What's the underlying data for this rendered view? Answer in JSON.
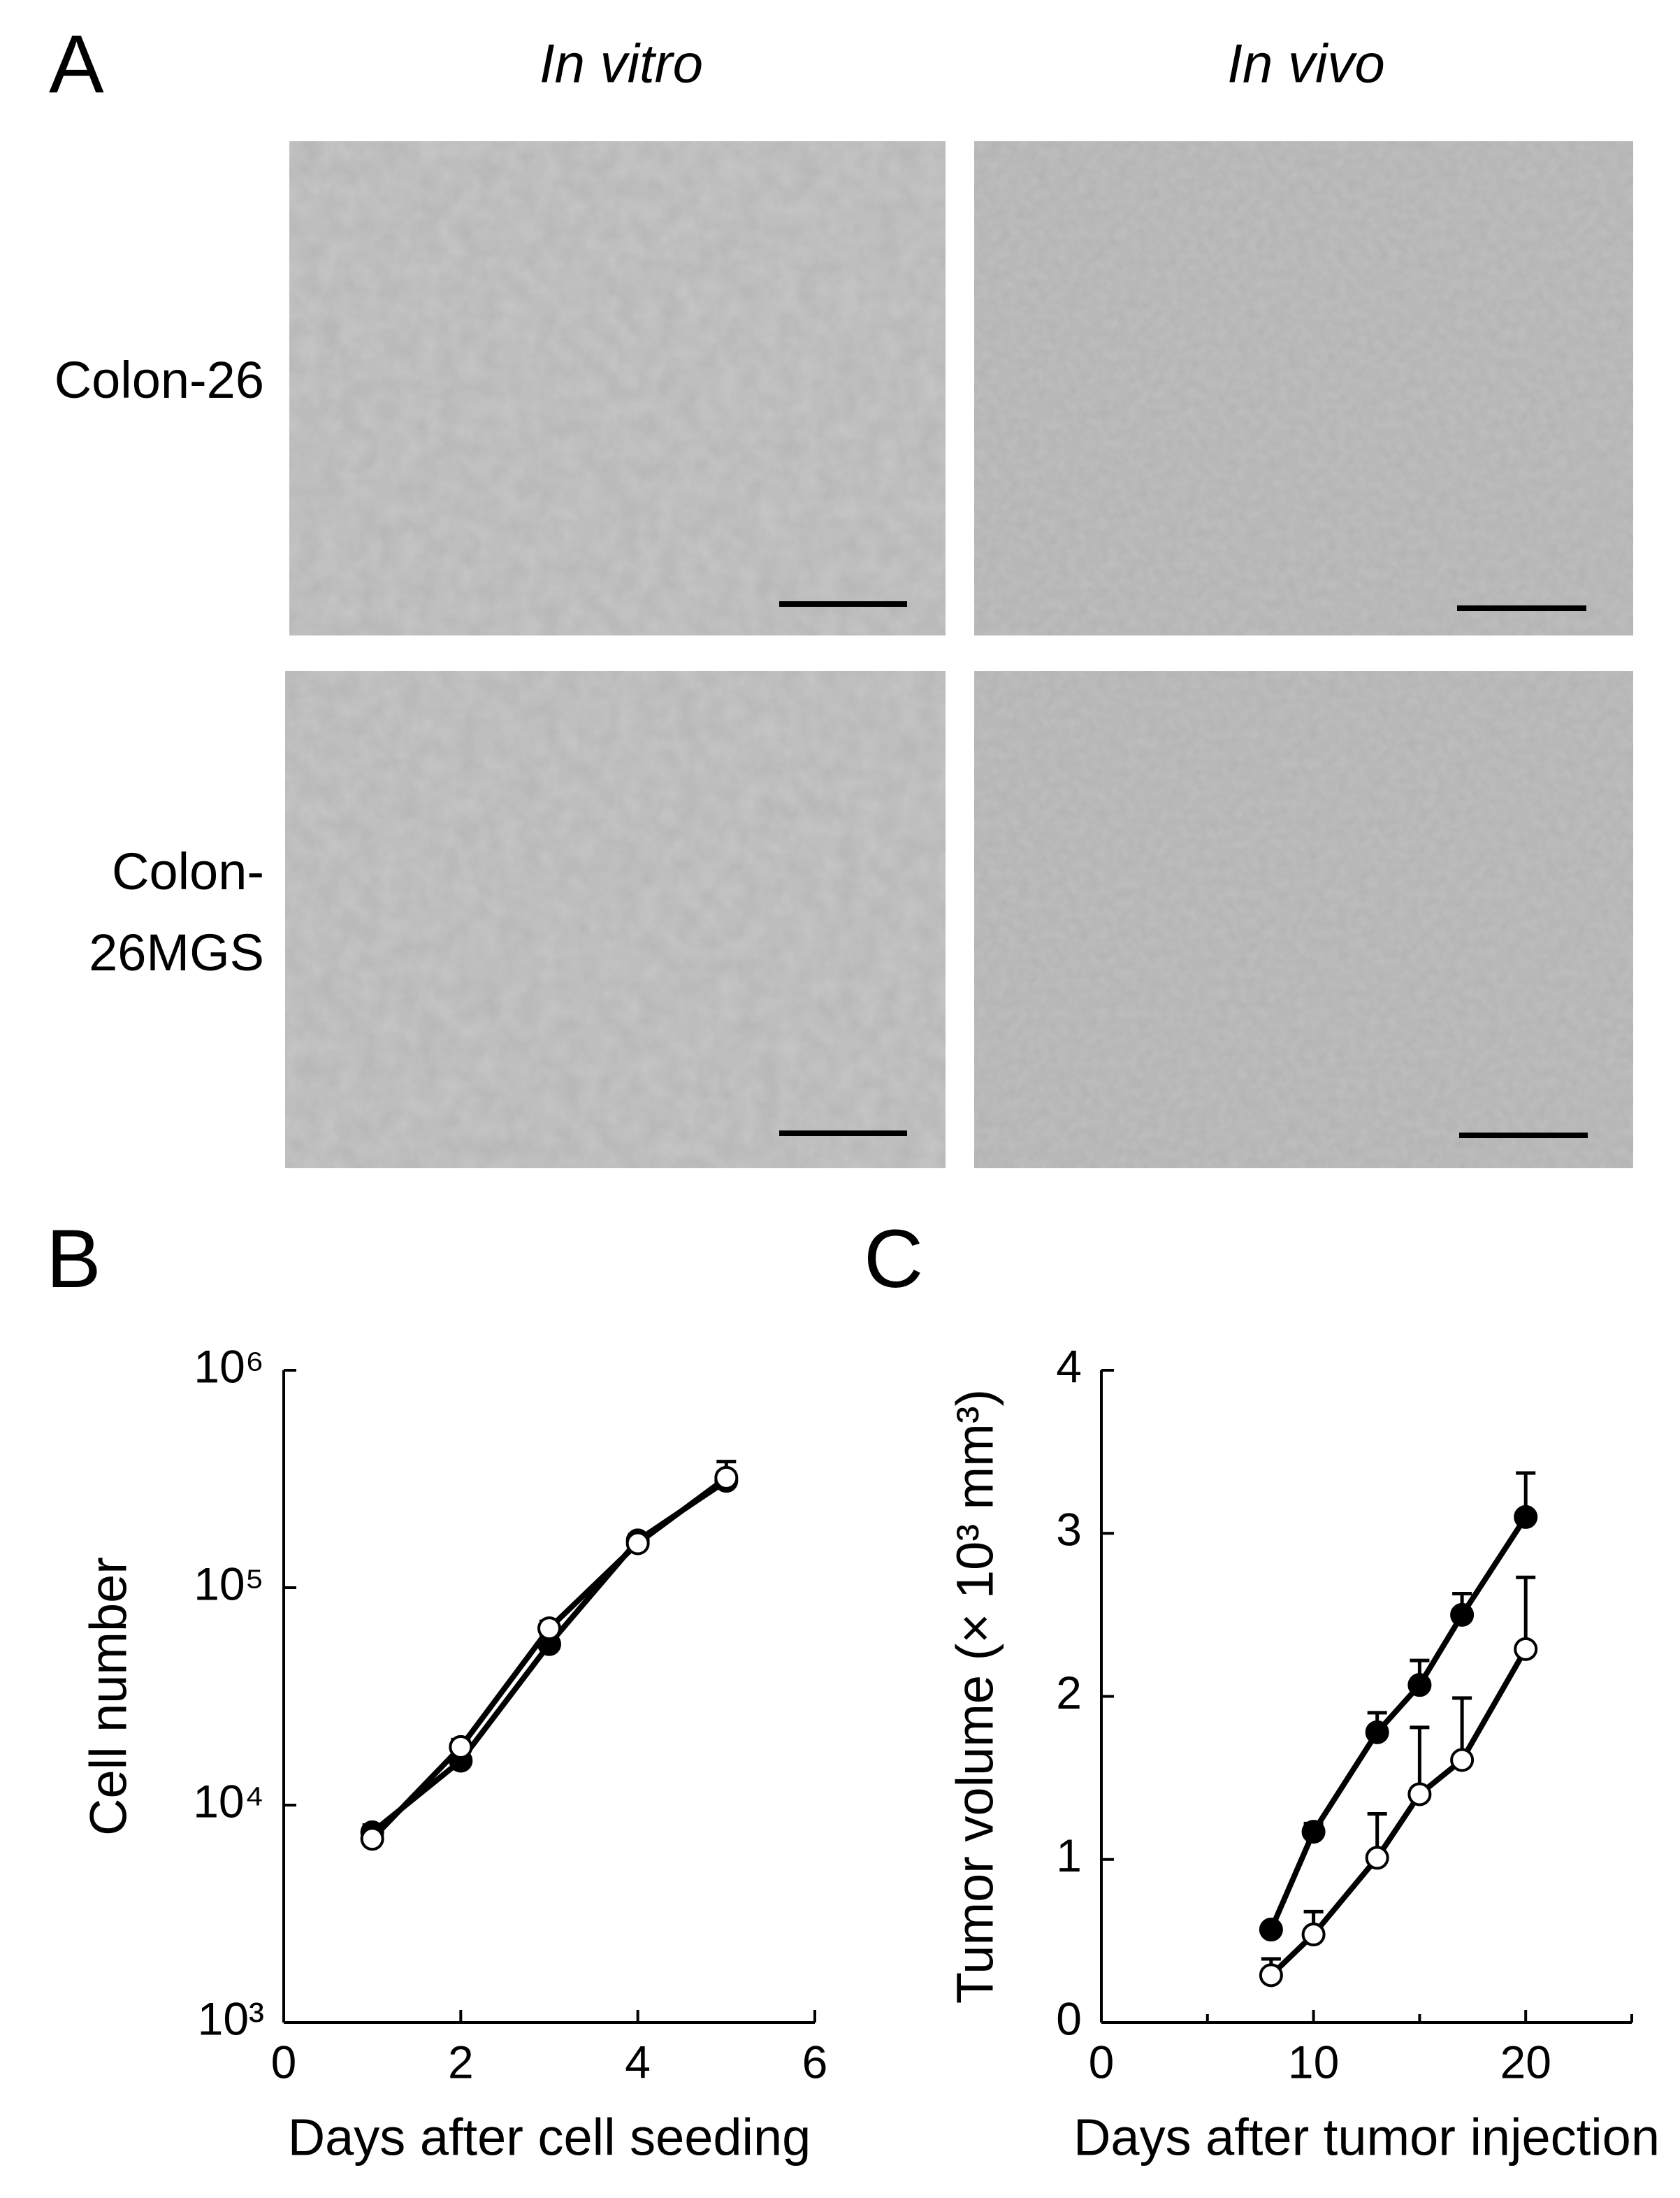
{
  "panel_a": {
    "label": "A",
    "columns": [
      "In vitro",
      "In vivo"
    ],
    "rows": [
      "Colon-26",
      "Colon-\n26MGS"
    ]
  },
  "chart_data": [
    {
      "type": "line",
      "panel_label": "B",
      "log_y": true,
      "xlabel": "Days after cell seeding",
      "ylabel": "Cell number",
      "xlim": [
        0,
        6
      ],
      "xticks": [
        0,
        2,
        4,
        6
      ],
      "ylim": [
        1000,
        1000000
      ],
      "yticks": [
        {
          "value": 1000,
          "label": "10³"
        },
        {
          "value": 10000,
          "label": "10⁴"
        },
        {
          "value": 100000,
          "label": "10⁵"
        },
        {
          "value": 1000000,
          "label": "10⁶"
        }
      ],
      "x": [
        1,
        2,
        3,
        4,
        5
      ],
      "series": [
        {
          "color": "#000000",
          "fill": "#000000",
          "values": [
            7500,
            16000,
            55000,
            165000,
            310000
          ],
          "errors": [
            600,
            1200,
            6000,
            10000,
            30000
          ]
        },
        {
          "color": "#000000",
          "fill": "#ffffff",
          "values": [
            7000,
            18500,
            65000,
            160000,
            320000
          ],
          "errors": [
            500,
            1500,
            5000,
            12000,
            60000
          ]
        }
      ]
    },
    {
      "type": "line",
      "panel_label": "C",
      "xlabel": "Days after tumor injection",
      "ylabel": "Tumor volume (× 10³ mm³)",
      "xlim": [
        0,
        25
      ],
      "xticks": [
        0,
        10,
        20
      ],
      "minor_xticks": [
        5,
        15,
        25
      ],
      "ylim": [
        0,
        4
      ],
      "yticks": [
        0,
        1,
        2,
        3,
        4
      ],
      "x": [
        8,
        10,
        13,
        15,
        17,
        20
      ],
      "series": [
        {
          "color": "#000000",
          "fill": "#000000",
          "values": [
            0.57,
            1.17,
            1.78,
            2.07,
            2.5,
            3.1
          ],
          "errors": [
            0.03,
            0.05,
            0.12,
            0.15,
            0.13,
            0.27
          ]
        },
        {
          "color": "#000000",
          "fill": "#ffffff",
          "values": [
            0.29,
            0.54,
            1.01,
            1.4,
            1.61,
            2.29
          ],
          "errors": [
            0.1,
            0.14,
            0.27,
            0.41,
            0.38,
            0.44
          ]
        }
      ]
    }
  ]
}
